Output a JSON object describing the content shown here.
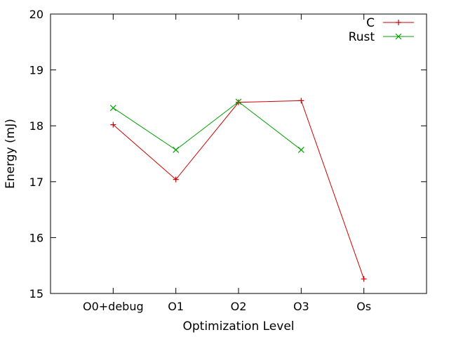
{
  "chart_data": {
    "type": "line",
    "title": "",
    "xlabel": "Optimization Level",
    "ylabel": "Energy (mJ)",
    "categories": [
      "O0+debug",
      "O1",
      "O2",
      "O3",
      "Os"
    ],
    "ylim": [
      15,
      20
    ],
    "yticks": [
      "15",
      "16",
      "17",
      "18",
      "19",
      "20"
    ],
    "grid": false,
    "legend_position": "top-right",
    "series": [
      {
        "name": "C",
        "color": "#cc0000",
        "marker": "plus",
        "values": [
          18.02,
          17.04,
          18.42,
          18.45,
          15.26
        ]
      },
      {
        "name": "Rust",
        "color": "#00a000",
        "marker": "cross",
        "values": [
          18.32,
          17.57,
          18.43,
          17.57,
          null
        ]
      }
    ]
  }
}
